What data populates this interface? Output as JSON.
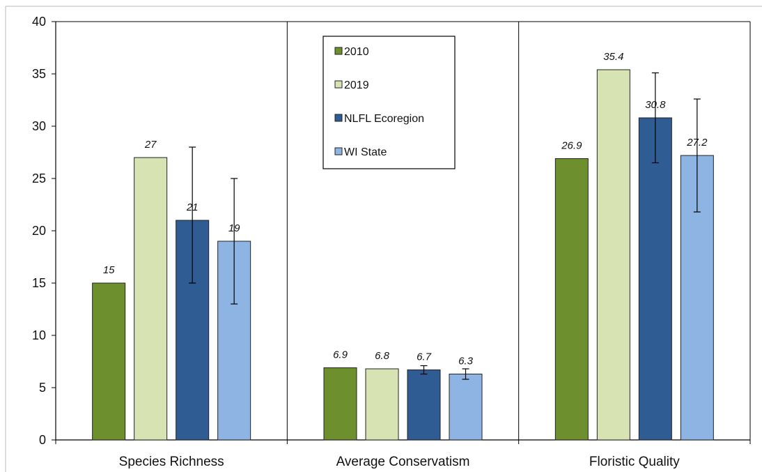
{
  "chart_data": {
    "type": "bar",
    "categories": [
      "Species Richness",
      "Average Conservatism",
      "Floristic Quality"
    ],
    "series": [
      {
        "name": "2010",
        "color": "#6e8f2e",
        "values": [
          15,
          6.9,
          26.9
        ],
        "errors": [
          null,
          null,
          null
        ]
      },
      {
        "name": "2019",
        "color": "#d8e3b4",
        "values": [
          27,
          6.8,
          35.4
        ],
        "errors": [
          null,
          null,
          null
        ]
      },
      {
        "name": "NLFL Ecoregion",
        "color": "#2f5c93",
        "values": [
          21,
          6.7,
          30.8
        ],
        "errors": [
          [
            15,
            28
          ],
          [
            6.3,
            7.1
          ],
          [
            26.5,
            35.1
          ]
        ]
      },
      {
        "name": "WI State",
        "color": "#8db4e2",
        "values": [
          19,
          6.3,
          27.2
        ],
        "errors": [
          [
            13,
            25
          ],
          [
            5.8,
            6.8
          ],
          [
            21.8,
            32.6
          ]
        ]
      }
    ],
    "data_labels": [
      [
        "15",
        "6.9",
        "26.9"
      ],
      [
        "27",
        "6.8",
        "35.4"
      ],
      [
        "21",
        "6.7",
        "30.8"
      ],
      [
        "19",
        "6.3",
        "27.2"
      ]
    ],
    "ylim": [
      0,
      40
    ],
    "yticks": [
      "0",
      "5",
      "10",
      "15",
      "20",
      "25",
      "30",
      "35",
      "40"
    ],
    "title": "",
    "xlabel": "",
    "ylabel": "",
    "grid": false,
    "legend_position": "top-center"
  }
}
